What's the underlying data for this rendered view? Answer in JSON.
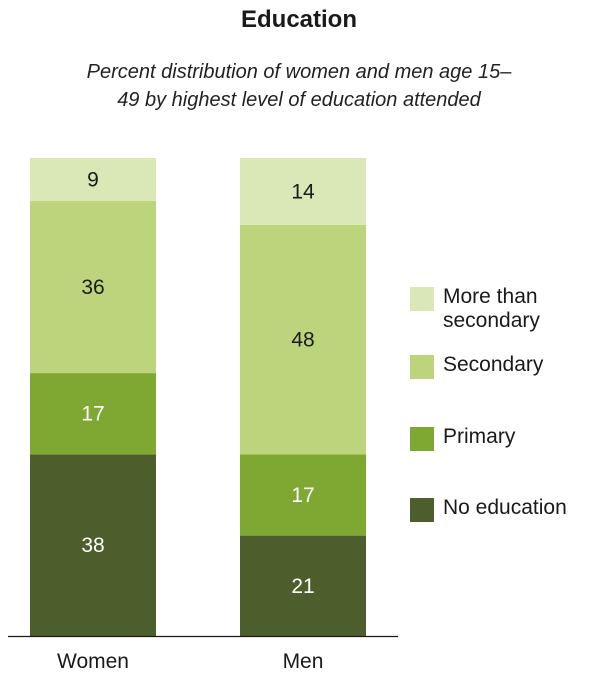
{
  "chart_data": {
    "type": "bar",
    "stacked": true,
    "title": "Education",
    "subtitle": "Percent distribution of women and men age 15–49 by highest level of education attended",
    "categories": [
      "Women",
      "Men"
    ],
    "series": [
      {
        "name": "No education",
        "values": [
          38,
          21
        ],
        "color": "#4b5e2c"
      },
      {
        "name": "Primary",
        "values": [
          17,
          17
        ],
        "color": "#7fa832"
      },
      {
        "name": "Secondary",
        "values": [
          36,
          48
        ],
        "color": "#bcd57c"
      },
      {
        "name": "More than secondary",
        "values": [
          9,
          14
        ],
        "color": "#d9e8b6"
      }
    ],
    "ylim": [
      0,
      100
    ],
    "legend_position": "right",
    "legend": [
      {
        "label": "More than\nsecondary",
        "color": "#d9e8b6"
      },
      {
        "label": "Secondary",
        "color": "#bcd57c"
      },
      {
        "label": "Primary",
        "color": "#7fa832"
      },
      {
        "label": "No education",
        "color": "#4b5e2c"
      }
    ]
  }
}
